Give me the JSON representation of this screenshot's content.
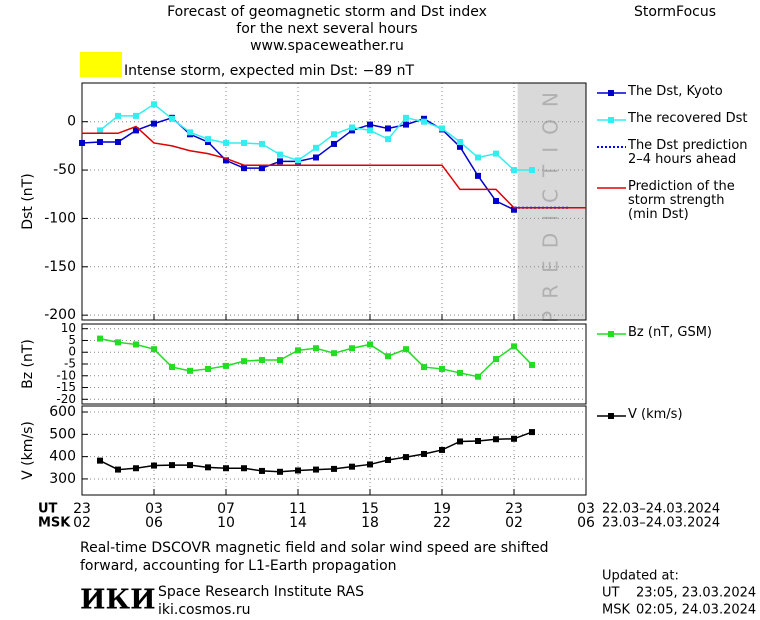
{
  "header": {
    "title_lines": [
      "Forecast of geomagnetic storm and Dst index",
      "for the next several hours",
      "www.spaceweather.ru"
    ],
    "brand": "StormFocus"
  },
  "alert": {
    "color": "#ffff00",
    "text": "Intense storm, expected min Dst: −89 nT"
  },
  "chart_data": [
    {
      "type": "line",
      "ylabel": "Dst (nT)",
      "xlim": [
        0,
        28
      ],
      "ylim": [
        -205,
        40
      ],
      "yticks": [
        0,
        -50,
        -100,
        -150,
        -200
      ],
      "grid": true,
      "legend": "right",
      "shade": {
        "x": [
          24.2,
          28
        ],
        "color": "#d9d9d9",
        "label": "PREDICTION"
      },
      "x": [
        0,
        1,
        2,
        3,
        4,
        5,
        6,
        7,
        8,
        9,
        10,
        11,
        12,
        13,
        14,
        15,
        16,
        17,
        18,
        19,
        20,
        21,
        22,
        23,
        24,
        25
      ],
      "series": [
        {
          "name": "The Dst, Kyoto",
          "color": "#0000cc",
          "marker": "square",
          "values": [
            -22,
            -21,
            -21,
            -9,
            -2,
            4,
            -13,
            -21,
            -40,
            -48,
            -48,
            -41,
            -41,
            -37,
            -23,
            -9,
            -3,
            -7,
            -3,
            3,
            -8,
            -26,
            -56,
            -82,
            -91,
            null
          ]
        },
        {
          "name": "The recovered Dst",
          "color": "#33eeee",
          "marker": "square",
          "values": [
            null,
            -9,
            6,
            6,
            18,
            3,
            -11,
            -18,
            -22,
            -22,
            -23,
            -34,
            -40,
            -27,
            -13,
            -6,
            -9,
            -18,
            4,
            0,
            -7,
            -21,
            -37,
            -33,
            -50,
            -50
          ]
        },
        {
          "name": "The Dst prediction\n2–4 hours ahead",
          "color": "#0000ff",
          "dash": "dotted",
          "x": [
            24,
            27
          ],
          "values": [
            -89,
            -89
          ]
        },
        {
          "name": "Prediction of the\nstorm strength\n(min Dst)",
          "color": "#dd0000",
          "x": [
            0,
            2,
            3,
            4,
            5,
            6,
            7,
            8,
            9,
            20,
            21,
            23,
            24,
            28
          ],
          "values": [
            -12,
            -12,
            -5,
            -22,
            -25,
            -30,
            -33,
            -38,
            -45,
            -45,
            -70,
            -70,
            -89,
            -89
          ]
        }
      ]
    },
    {
      "type": "line",
      "ylabel": "Bz (nT)",
      "xlim": [
        0,
        28
      ],
      "ylim": [
        -22,
        12
      ],
      "yticks": [
        10,
        5,
        0,
        -5,
        -10,
        -15,
        -20
      ],
      "grid": true,
      "legend": "right",
      "x": [
        1,
        2,
        3,
        4,
        5,
        6,
        7,
        8,
        9,
        10,
        11,
        12,
        13,
        14,
        15,
        16,
        17,
        18,
        19,
        20,
        21,
        22,
        23,
        24,
        25
      ],
      "series": [
        {
          "name": "Bz (nT, GSM)",
          "color": "#22dd22",
          "marker": "square",
          "values": [
            5.8,
            4.2,
            3.3,
            1.3,
            -6.3,
            -7.9,
            -7.1,
            -5.8,
            -3.8,
            -3.3,
            -3.3,
            0.8,
            1.7,
            -0.4,
            1.7,
            3.3,
            -1.7,
            1.3,
            -6.3,
            -7.1,
            -8.8,
            -10.4,
            -2.9,
            2.5,
            -5.4
          ]
        }
      ]
    },
    {
      "type": "line",
      "ylabel": "V (km/s)",
      "xlim": [
        0,
        28
      ],
      "ylim": [
        228,
        627
      ],
      "yticks": [
        300,
        400,
        500,
        600
      ],
      "grid": true,
      "legend": "right",
      "x": [
        1,
        2,
        3,
        4,
        5,
        6,
        7,
        8,
        9,
        10,
        11,
        12,
        13,
        14,
        15,
        16,
        17,
        18,
        19,
        20,
        21,
        22,
        23,
        24,
        25
      ],
      "series": [
        {
          "name": "V (km/s)",
          "color": "#000000",
          "marker": "square",
          "values": [
            382,
            342,
            348,
            360,
            362,
            362,
            352,
            348,
            348,
            336,
            332,
            338,
            342,
            345,
            355,
            365,
            385,
            398,
            412,
            430,
            468,
            470,
            478,
            480,
            510
          ]
        }
      ]
    }
  ],
  "time_axis": {
    "ticks": [
      0,
      4,
      8,
      12,
      16,
      20,
      24,
      28
    ],
    "rows": [
      {
        "label": "UT",
        "tick_labels": [
          "23",
          "03",
          "07",
          "11",
          "15",
          "19",
          "23",
          "03"
        ],
        "range": "22.03–24.03.2024"
      },
      {
        "label": "MSK",
        "tick_labels": [
          "02",
          "06",
          "10",
          "14",
          "18",
          "22",
          "02",
          "06"
        ],
        "range": "23.03–24.03.2024"
      }
    ]
  },
  "footer": {
    "note_lines": [
      "Real-time DSCOVR magnetic field and solar wind speed are shifted",
      "forward, accounting for L1-Earth propagation"
    ],
    "logo": "ИКИ",
    "institute": "Space Research Institute RAS",
    "website": "iki.cosmos.ru",
    "updated_title": "Updated at:",
    "updated": [
      {
        "zone": "UT",
        "time": "23:05, 23.03.2024"
      },
      {
        "zone": "MSK",
        "time": "02:05, 24.03.2024"
      }
    ]
  }
}
